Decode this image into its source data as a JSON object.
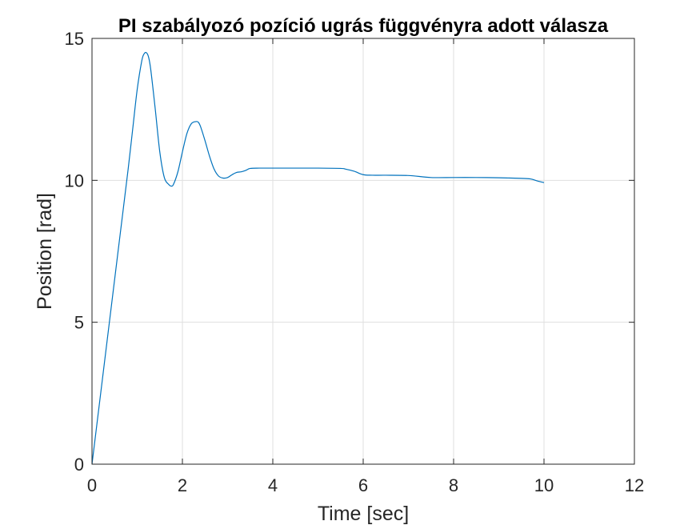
{
  "chart_data": {
    "type": "line",
    "title": "PI szabályozó pozíció ugrás függvényra adott válasza",
    "xlabel": "Time [sec]",
    "ylabel": "Position [rad]",
    "xlim": [
      0,
      12
    ],
    "ylim": [
      0,
      15
    ],
    "xticks": [
      0,
      2,
      4,
      6,
      8,
      10,
      12
    ],
    "yticks": [
      0,
      5,
      10,
      15
    ],
    "xtick_labels": [
      "0",
      "2",
      "4",
      "6",
      "8",
      "10",
      "12"
    ],
    "ytick_labels": [
      "0",
      "5",
      "10",
      "15"
    ],
    "grid": true,
    "legend": "none",
    "series": [
      {
        "color": "#0072BD",
        "x": [
          0,
          0.2,
          0.4,
          0.6,
          0.8,
          0.9,
          1.0,
          1.1,
          1.15,
          1.2,
          1.25,
          1.3,
          1.4,
          1.5,
          1.6,
          1.7,
          1.75,
          1.8,
          1.9,
          2.0,
          2.1,
          2.2,
          2.3,
          2.35,
          2.4,
          2.5,
          2.6,
          2.7,
          2.8,
          2.9,
          3.0,
          3.1,
          3.2,
          3.3,
          3.4,
          3.5,
          3.7,
          4.0,
          4.5,
          5.0,
          5.5,
          5.6,
          5.8,
          6.0,
          6.2,
          6.5,
          7.0,
          7.5,
          8.0,
          8.5,
          9.0,
          9.5,
          9.7,
          9.85,
          10.0
        ],
        "y": [
          0,
          2.6,
          5.2,
          7.8,
          10.4,
          11.8,
          13.2,
          14.2,
          14.45,
          14.5,
          14.35,
          13.9,
          12.5,
          11.0,
          10.1,
          9.85,
          9.8,
          9.85,
          10.3,
          11.0,
          11.65,
          12.0,
          12.07,
          12.05,
          11.9,
          11.4,
          10.85,
          10.4,
          10.15,
          10.08,
          10.1,
          10.2,
          10.28,
          10.3,
          10.35,
          10.42,
          10.43,
          10.43,
          10.43,
          10.43,
          10.42,
          10.4,
          10.32,
          10.2,
          10.18,
          10.18,
          10.17,
          10.1,
          10.1,
          10.1,
          10.09,
          10.07,
          10.05,
          9.98,
          9.92
        ]
      }
    ]
  }
}
